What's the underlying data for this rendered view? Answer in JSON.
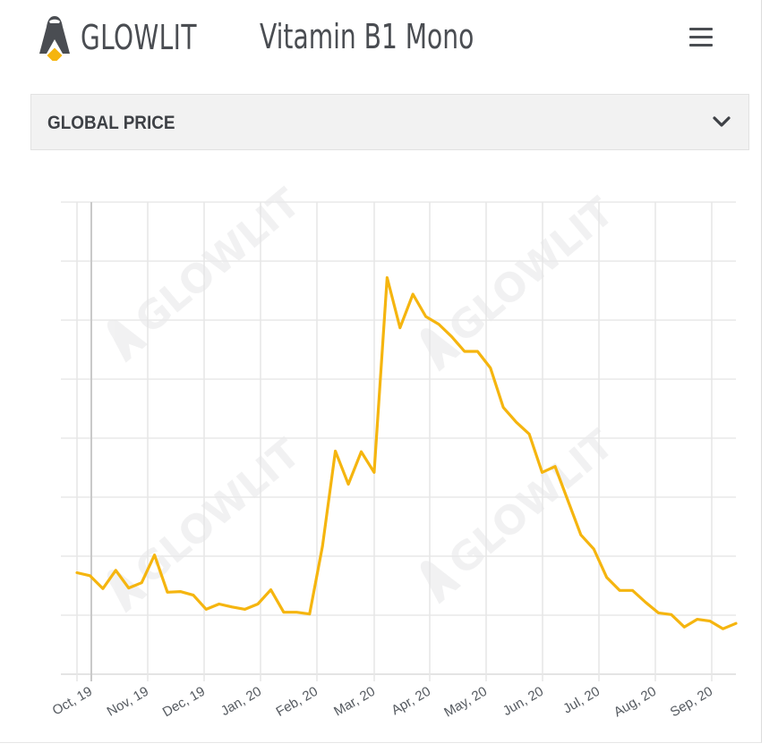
{
  "header": {
    "brand": "GLOWLIT",
    "product_title": "Vitamin B1 Mono",
    "menu_icon": "hamburger-menu-icon"
  },
  "dropdown": {
    "label": "GLOBAL PRICE",
    "icon": "chevron-down-icon"
  },
  "colors": {
    "line": "#F5B50F",
    "text": "#4A4D52",
    "grid": "#E8E8E8",
    "panel_bg": "#F2F2F2",
    "logo_accent": "#F5B50F"
  },
  "chart_data": {
    "type": "line",
    "title": "Global Price",
    "xlabel": "",
    "ylabel": "",
    "y_tick_labels": [],
    "ylim": [
      0,
      8
    ],
    "grid": true,
    "legend": "none",
    "watermark": "GLOWLIT",
    "categories": [
      "Oct, 19",
      "Nov, 19",
      "Dec, 19",
      "Jan, 20",
      "Feb, 20",
      "Mar, 20",
      "Apr, 20",
      "May, 20",
      "Jun, 20",
      "Jul, 20",
      "Aug, 20",
      "Sep, 20"
    ],
    "series": [
      {
        "name": "Vitamin B1 Mono",
        "color": "#F5B50F",
        "x_week_index": [
          0,
          1,
          2,
          3,
          4,
          5,
          6,
          7,
          8,
          9,
          10,
          11,
          12,
          13,
          14,
          15,
          16,
          17,
          18,
          19,
          20,
          21,
          22,
          23,
          24,
          25,
          26,
          27,
          28,
          29,
          30,
          31,
          32,
          33,
          34,
          35,
          36,
          37,
          38,
          39,
          40,
          41,
          42,
          43,
          44,
          45,
          46,
          47,
          48,
          49,
          50,
          51
        ],
        "values": [
          1.72,
          1.67,
          1.45,
          1.76,
          1.46,
          1.55,
          2.02,
          1.39,
          1.4,
          1.34,
          1.1,
          1.19,
          1.14,
          1.1,
          1.19,
          1.43,
          1.05,
          1.05,
          1.02,
          2.17,
          3.78,
          3.22,
          3.77,
          3.42,
          6.72,
          5.87,
          6.44,
          6.06,
          5.93,
          5.72,
          5.47,
          5.47,
          5.19,
          4.52,
          4.27,
          4.07,
          3.42,
          3.52,
          2.94,
          2.36,
          2.12,
          1.64,
          1.42,
          1.42,
          1.22,
          1.04,
          1.01,
          0.8,
          0.93,
          0.9,
          0.77,
          0.86
        ]
      }
    ]
  }
}
